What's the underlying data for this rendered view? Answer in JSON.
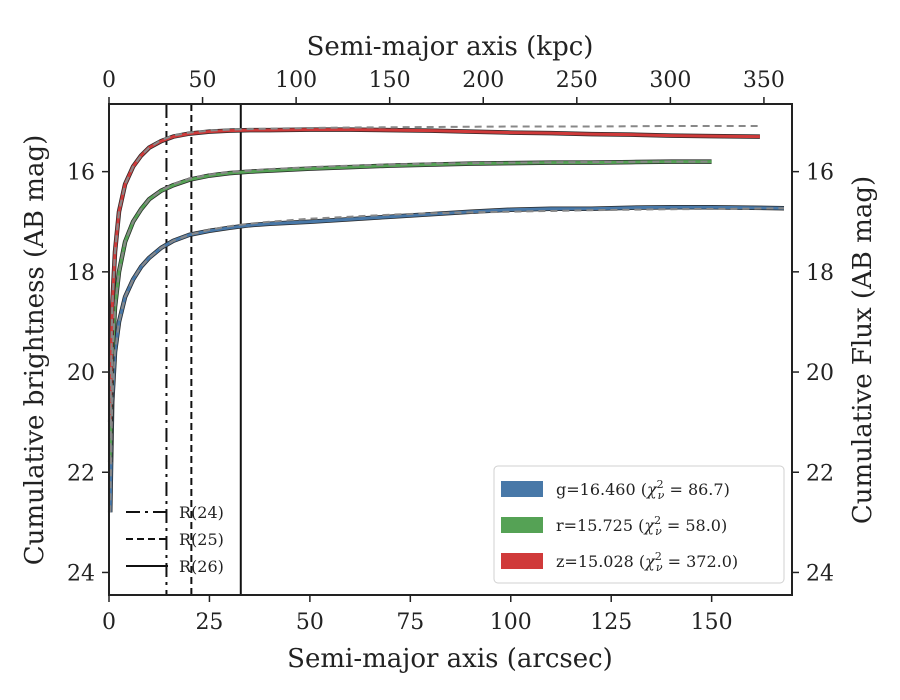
{
  "chart_data": {
    "type": "line",
    "xlabel": "Semi-major axis (arcsec)",
    "x2label": "Semi-major axis (kpc)",
    "ylabel": "Cumulative brightness (AB mag)",
    "y2label": "Cumulative Flux (AB mag)",
    "xlim": [
      0,
      170
    ],
    "x2lim": [
      0,
      365
    ],
    "ylim": [
      24.45,
      14.65
    ],
    "y_inverted": true,
    "xticks": [
      "0",
      "25",
      "50",
      "75",
      "100",
      "125",
      "150"
    ],
    "xtick_values": [
      0,
      25,
      50,
      75,
      100,
      125,
      150
    ],
    "x2ticks": [
      "0",
      "50",
      "100",
      "150",
      "200",
      "250",
      "300",
      "350"
    ],
    "x2tick_values": [
      0,
      50,
      100,
      150,
      200,
      250,
      300,
      350
    ],
    "yticks": [
      "16",
      "18",
      "20",
      "22",
      "24"
    ],
    "ytick_values": [
      16,
      18,
      20,
      22,
      24
    ],
    "grid": false,
    "legend_position": "bottom-right",
    "series": [
      {
        "name": "g=16.460 (χ²ν = 86.7)",
        "label_main": "g=16.460 (",
        "label_chi": "χ",
        "label_sup": "2",
        "label_sub": "ν",
        "label_val": " = 86.7)",
        "color": "#4878a8",
        "x": [
          0.3,
          0.8,
          1.5,
          2.5,
          4,
          6,
          8,
          10,
          13,
          16,
          20,
          25,
          30,
          35,
          40,
          50,
          60,
          70,
          80,
          90,
          100,
          110,
          120,
          130,
          140,
          150,
          160,
          168
        ],
        "y": [
          22.8,
          20.6,
          19.6,
          19.0,
          18.5,
          18.15,
          17.9,
          17.72,
          17.52,
          17.38,
          17.26,
          17.18,
          17.12,
          17.07,
          17.04,
          17.0,
          16.95,
          16.9,
          16.85,
          16.8,
          16.76,
          16.74,
          16.74,
          16.72,
          16.71,
          16.71,
          16.72,
          16.73
        ]
      },
      {
        "name": "r=15.725 (χ²ν = 58.0)",
        "label_main": "r=15.725 (",
        "label_chi": "χ",
        "label_sup": "2",
        "label_sub": "ν",
        "label_val": " = 58.0)",
        "color": "#55a255",
        "x": [
          0.3,
          0.8,
          1.5,
          2.5,
          4,
          6,
          8,
          10,
          13,
          16,
          20,
          25,
          30,
          35,
          40,
          50,
          60,
          70,
          80,
          90,
          100,
          110,
          120,
          130,
          140,
          150
        ],
        "y": [
          21.8,
          19.7,
          18.7,
          18.0,
          17.4,
          17.0,
          16.75,
          16.55,
          16.38,
          16.27,
          16.16,
          16.08,
          16.03,
          16.0,
          15.98,
          15.94,
          15.91,
          15.88,
          15.86,
          15.84,
          15.83,
          15.82,
          15.82,
          15.81,
          15.8,
          15.8
        ]
      },
      {
        "name": "z=15.028 (χ²ν = 372.0)",
        "label_main": "z=15.028 (",
        "label_chi": "χ",
        "label_sup": "2",
        "label_sub": "ν",
        "label_val": " = 372.0)",
        "color": "#d03a3a",
        "x": [
          0.3,
          0.8,
          1.5,
          2.5,
          4,
          6,
          8,
          10,
          13,
          16,
          20,
          25,
          30,
          35,
          40,
          50,
          60,
          70,
          80,
          90,
          100,
          110,
          115,
          120,
          130,
          140,
          150,
          162
        ],
        "y": [
          21.0,
          18.7,
          17.6,
          16.8,
          16.25,
          15.9,
          15.68,
          15.52,
          15.39,
          15.3,
          15.24,
          15.2,
          15.18,
          15.17,
          15.17,
          15.16,
          15.16,
          15.17,
          15.18,
          15.2,
          15.22,
          15.23,
          15.24,
          15.25,
          15.26,
          15.28,
          15.29,
          15.3
        ]
      }
    ],
    "model_curves": [
      {
        "color": "#888888",
        "x": [
          0.3,
          0.8,
          1.5,
          2.5,
          4,
          6,
          8,
          10,
          13,
          16,
          20,
          25,
          30,
          35,
          40,
          50,
          60,
          70,
          80,
          100,
          120,
          140,
          160,
          168
        ],
        "y": [
          22.8,
          20.6,
          19.6,
          19.0,
          18.5,
          18.15,
          17.9,
          17.72,
          17.52,
          17.38,
          17.26,
          17.16,
          17.09,
          17.04,
          17.0,
          16.94,
          16.9,
          16.86,
          16.83,
          16.8,
          16.77,
          16.75,
          16.74,
          16.73
        ]
      },
      {
        "color": "#888888",
        "x": [
          0.3,
          0.8,
          1.5,
          2.5,
          4,
          6,
          8,
          10,
          13,
          16,
          20,
          25,
          30,
          40,
          50,
          60,
          80,
          100,
          120,
          140,
          150
        ],
        "y": [
          21.8,
          19.7,
          18.7,
          18.0,
          17.4,
          17.0,
          16.75,
          16.55,
          16.37,
          16.25,
          16.14,
          16.06,
          16.01,
          15.95,
          15.91,
          15.88,
          15.84,
          15.82,
          15.81,
          15.8,
          15.8
        ]
      },
      {
        "color": "#888888",
        "x": [
          0.3,
          0.8,
          1.5,
          2.5,
          4,
          6,
          8,
          10,
          13,
          16,
          20,
          25,
          30,
          40,
          50,
          60,
          80,
          100,
          120,
          140,
          162
        ],
        "y": [
          21.0,
          18.7,
          17.6,
          16.8,
          16.25,
          15.9,
          15.68,
          15.52,
          15.37,
          15.28,
          15.22,
          15.18,
          15.16,
          15.14,
          15.13,
          15.12,
          15.11,
          15.1,
          15.1,
          15.09,
          15.09
        ]
      }
    ],
    "reference_lines": [
      {
        "label": "R(24)",
        "x": 14.3,
        "style": "dashdot"
      },
      {
        "label": "R(25)",
        "x": 20.5,
        "style": "dashed"
      },
      {
        "label": "R(26)",
        "x": 32.8,
        "style": "solid"
      }
    ]
  }
}
